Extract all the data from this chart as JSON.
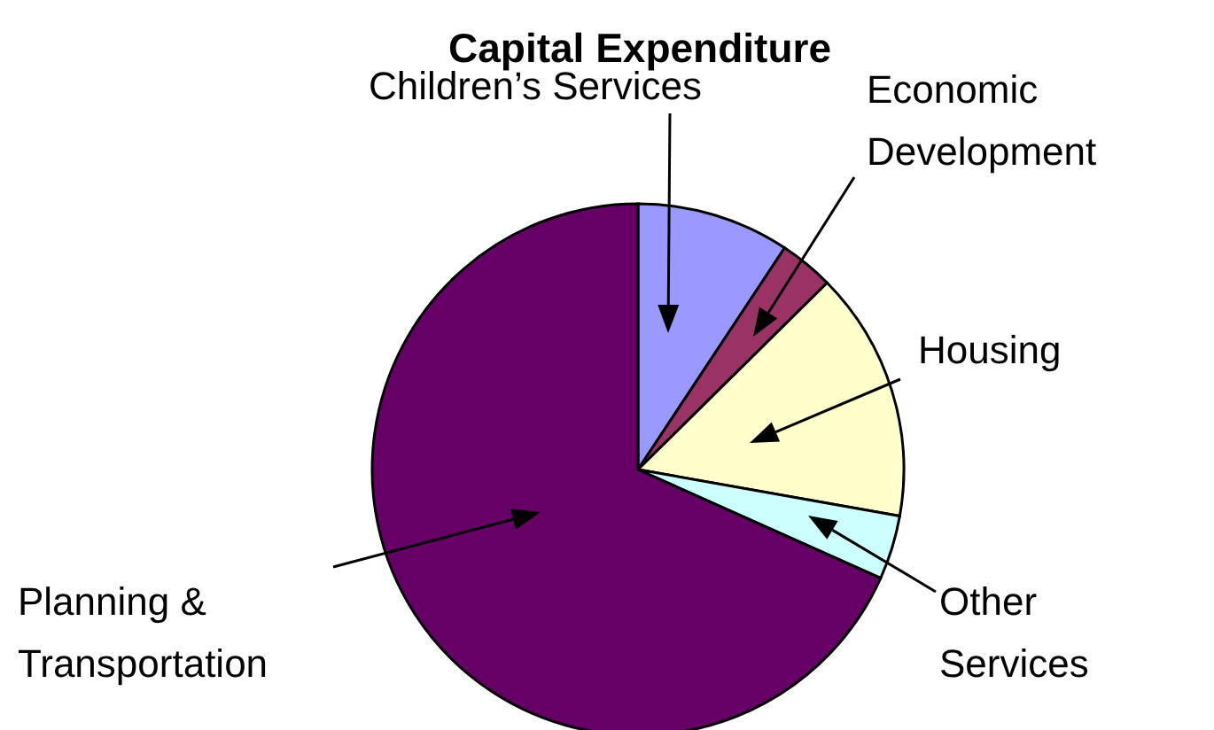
{
  "chart_data": {
    "type": "pie",
    "title": "Capital Expenditure",
    "categories": [
      "Children’s Services",
      "Economic Development",
      "Housing",
      "Other Services",
      "Planning & Transportation"
    ],
    "values": [
      9.3,
      3.3,
      15.2,
      3.9,
      68.3
    ],
    "colors": [
      "#9999ff",
      "#993366",
      "#ffffcc",
      "#ccffff",
      "#660066"
    ]
  }
}
